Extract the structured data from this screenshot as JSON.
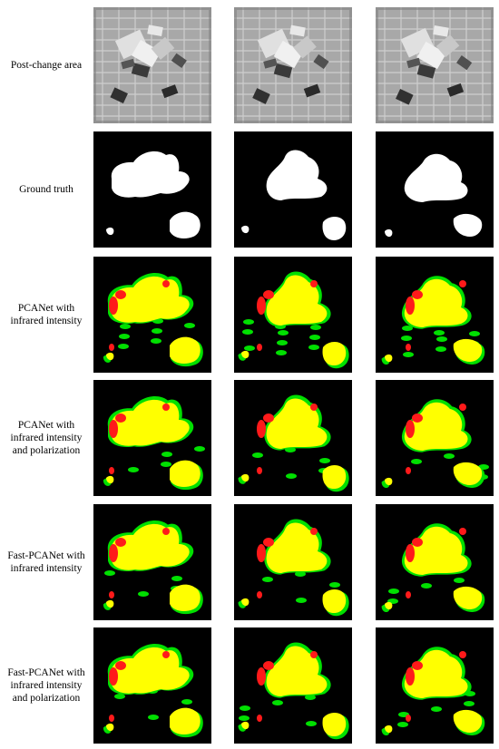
{
  "figure": {
    "columns": 3,
    "rows": [
      {
        "label_lines": [
          "Post-change area"
        ],
        "kind": "infrared"
      },
      {
        "label_lines": [
          "Ground truth"
        ],
        "kind": "mask"
      },
      {
        "label_lines": [
          "PCANet with",
          "infrared intensity"
        ],
        "kind": "result"
      },
      {
        "label_lines": [
          "PCANet with",
          "infrared intensity",
          "and polarization"
        ],
        "kind": "result"
      },
      {
        "label_lines": [
          "Fast-PCANet with",
          "infrared intensity"
        ],
        "kind": "result"
      },
      {
        "label_lines": [
          "Fast-PCANet with",
          "infrared intensity",
          "and polarization"
        ],
        "kind": "result"
      }
    ],
    "colors": {
      "background": "#000000",
      "correct_detection": "#ffff00",
      "false_alarm": "#00e000",
      "missed_detection": "#ff1a1a",
      "mask_foreground": "#ffffff",
      "infrared_base": "#a8a8a8"
    }
  }
}
